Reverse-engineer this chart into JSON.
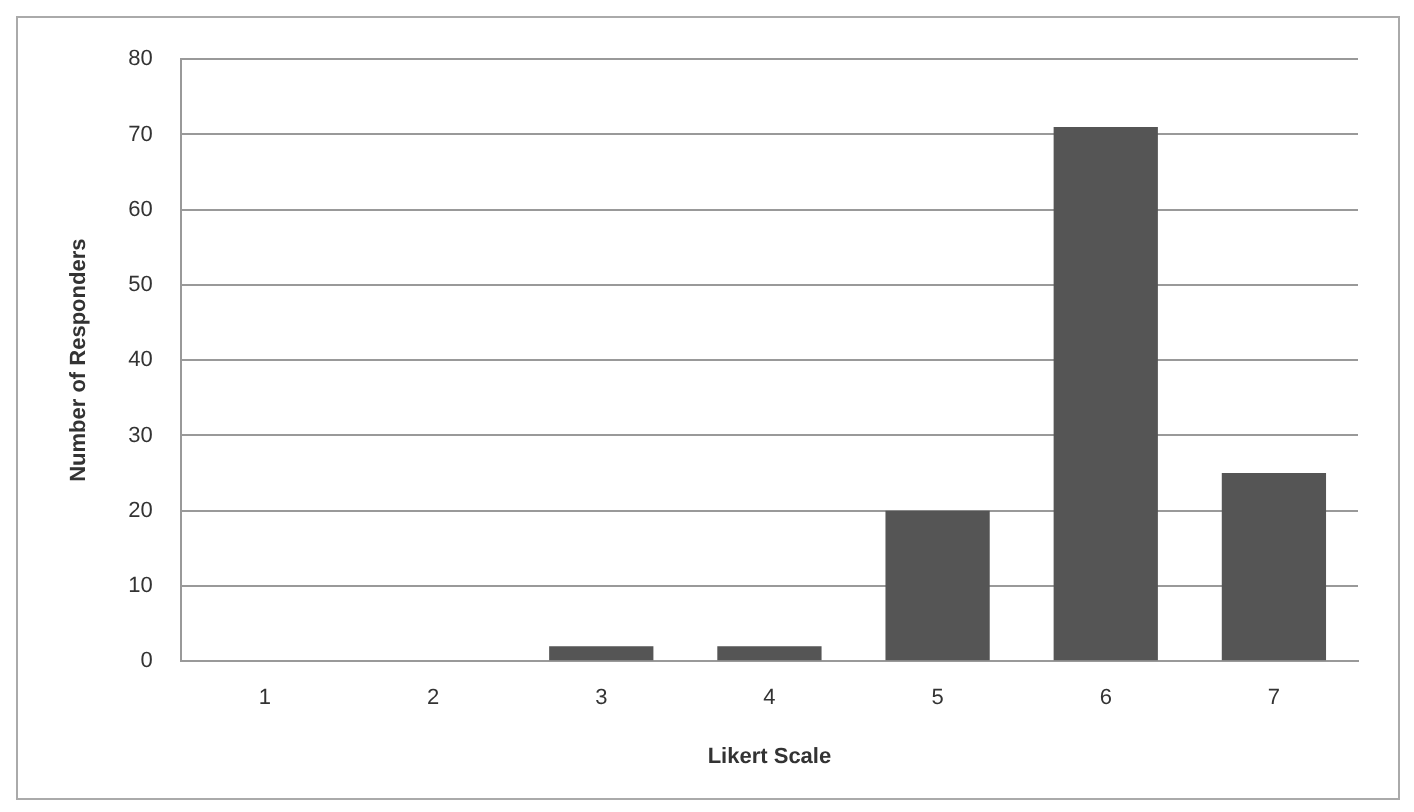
{
  "chart_data": {
    "type": "bar",
    "xlabel": "Likert Scale",
    "ylabel": "Number of Responders",
    "categories": [
      "1",
      "2",
      "3",
      "4",
      "5",
      "6",
      "7"
    ],
    "values": [
      0,
      0,
      2,
      2,
      20,
      71,
      25
    ],
    "color": "#555555",
    "ylim": [
      0,
      80
    ],
    "yticks": [
      0,
      10,
      20,
      30,
      40,
      50,
      60,
      70,
      80
    ],
    "grid": "y",
    "legend": false
  }
}
